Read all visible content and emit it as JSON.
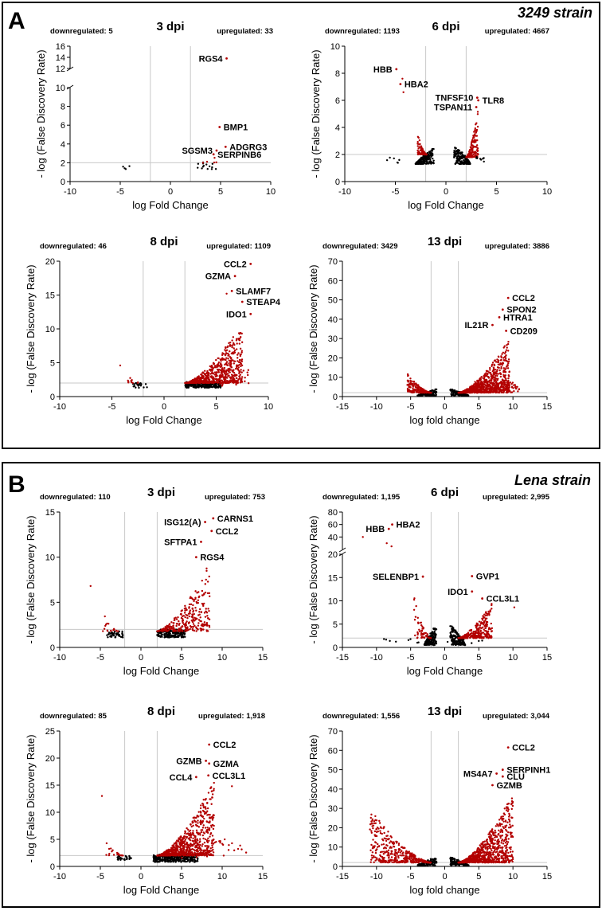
{
  "colors": {
    "significant": "#b30000",
    "nonsignificant": "#000000",
    "threshold": "#c8c8c8"
  },
  "panels": [
    {
      "letter": "A",
      "strain": "3249 strain"
    },
    {
      "letter": "B",
      "strain": "Lena strain"
    }
  ],
  "chart_data": [
    {
      "type": "scatter",
      "panel": "A",
      "title": "3 dpi",
      "xlabel": "log Fold Change",
      "ylabel": "- log (False Discovery Rate)",
      "downregulated_label": "downregulated: 5",
      "upregulated_label": "upregulated: 33",
      "xlim": [
        -10,
        10
      ],
      "xticks": [
        -10,
        -5,
        0,
        5,
        10
      ],
      "ylim": [
        0,
        16
      ],
      "yticks": [
        0,
        2,
        4,
        6,
        8,
        10,
        12,
        14,
        16
      ],
      "y_axis_break": {
        "from": 10,
        "to": 12
      },
      "thresholds": {
        "x": [
          -2,
          2
        ],
        "y": 2
      },
      "labeled_points": [
        {
          "gene": "RGS4",
          "x": 5.6,
          "y": 13.8,
          "label_side": "left"
        },
        {
          "gene": "BMP1",
          "x": 4.9,
          "y": 5.8,
          "label_side": "right"
        },
        {
          "gene": "ADGRG3",
          "x": 5.5,
          "y": 3.7,
          "label_side": "right"
        },
        {
          "gene": "SERPINB6",
          "x": 4.3,
          "y": 2.9,
          "label_side": "right"
        },
        {
          "gene": "SGSM3",
          "x": 4.6,
          "y": 3.3,
          "label_side": "left"
        }
      ],
      "seed": 11,
      "clouds": [
        {
          "n": 4,
          "xmin": -4.8,
          "xmax": -3.8,
          "ymin": 1.3,
          "ymax": 1.7,
          "shape": "flat",
          "color": "nonsignificant"
        },
        {
          "n": 14,
          "xmin": 2.5,
          "xmax": 4.6,
          "ymin": 1.3,
          "ymax": 2.1,
          "shape": "flat",
          "color": "nonsignificant"
        },
        {
          "n": 5,
          "xmin": 3.2,
          "xmax": 4.8,
          "ymin": 2.0,
          "ymax": 2.9,
          "shape": "up",
          "color": "significant"
        }
      ]
    },
    {
      "type": "scatter",
      "panel": "A",
      "title": "6 dpi",
      "xlabel": "log Fold Change",
      "ylabel": "- log (False Discovery Rate)",
      "downregulated_label": "downregulated: 1193",
      "upregulated_label": "upregulated: 4667",
      "xlim": [
        -10,
        10
      ],
      "xticks": [
        -10,
        -5,
        0,
        5,
        10
      ],
      "ylim": [
        0,
        10
      ],
      "yticks": [
        0,
        2,
        4,
        6,
        8,
        10
      ],
      "thresholds": {
        "x": [
          -2,
          2
        ],
        "y": 2
      },
      "labeled_points": [
        {
          "gene": "HBB",
          "x": -4.9,
          "y": 8.3,
          "label_side": "left"
        },
        {
          "gene": "HBA2",
          "x": -4.5,
          "y": 7.2,
          "label_side": "right"
        },
        {
          "gene": "TNFSF10",
          "x": 3.1,
          "y": 6.2,
          "label_side": "left"
        },
        {
          "gene": "TLR8",
          "x": 3.2,
          "y": 6.0,
          "label_side": "right"
        },
        {
          "gene": "TSPAN11",
          "x": 3.0,
          "y": 5.5,
          "label_side": "left"
        }
      ],
      "extra_points": [
        {
          "x": -4.2,
          "y": 6.6
        },
        {
          "x": -4.3,
          "y": 7.6
        }
      ],
      "seed": 23,
      "clouds": [
        {
          "n": 190,
          "xmin": -3.0,
          "xmax": -1.2,
          "ymin": 1.3,
          "ymax": 2.5,
          "shape": "dome_left",
          "color": "nonsignificant"
        },
        {
          "n": 90,
          "xmin": -2.8,
          "xmax": -1.9,
          "ymin": 2.0,
          "ymax": 3.5,
          "shape": "down",
          "color": "significant"
        },
        {
          "n": 6,
          "xmin": -6.0,
          "xmax": -4.3,
          "ymin": 1.3,
          "ymax": 1.9,
          "shape": "flat",
          "color": "nonsignificant"
        },
        {
          "n": 190,
          "xmin": 0.8,
          "xmax": 2.4,
          "ymin": 1.3,
          "ymax": 2.8,
          "shape": "dome_right",
          "color": "nonsignificant"
        },
        {
          "n": 180,
          "xmin": 2.0,
          "xmax": 3.2,
          "ymin": 1.8,
          "ymax": 5.5,
          "shape": "up",
          "color": "significant"
        },
        {
          "n": 8,
          "xmin": 3.0,
          "xmax": 3.9,
          "ymin": 1.3,
          "ymax": 1.9,
          "shape": "flat",
          "color": "nonsignificant"
        }
      ]
    },
    {
      "type": "scatter",
      "panel": "A",
      "title": "8 dpi",
      "xlabel": "log Fold Change",
      "ylabel": "- log (False Discovery Rate)",
      "downregulated_label": "downregulated: 46",
      "upregulated_label": "upregulated: 1109",
      "xlim": [
        -10,
        10
      ],
      "xticks": [
        -10,
        -5,
        0,
        5,
        10
      ],
      "ylim": [
        0,
        20
      ],
      "yticks": [
        0,
        5,
        10,
        15,
        20
      ],
      "thresholds": {
        "x": [
          -2,
          2
        ],
        "y": 2
      },
      "labeled_points": [
        {
          "gene": "CCL2",
          "x": 8.3,
          "y": 19.6,
          "label_side": "left"
        },
        {
          "gene": "GZMA",
          "x": 6.8,
          "y": 17.8,
          "label_side": "left"
        },
        {
          "gene": "SLAMF7",
          "x": 6.5,
          "y": 15.6,
          "label_side": "right"
        },
        {
          "gene": "STEAP4",
          "x": 7.5,
          "y": 14.0,
          "label_side": "right"
        },
        {
          "gene": "IDO1",
          "x": 8.3,
          "y": 12.2,
          "label_side": "left"
        }
      ],
      "extra_points": [
        {
          "x": -4.2,
          "y": 4.6
        },
        {
          "x": 6.0,
          "y": 15.2
        }
      ],
      "seed": 37,
      "clouds": [
        {
          "n": 22,
          "xmin": -3.0,
          "xmax": -1.2,
          "ymin": 1.3,
          "ymax": 2.0,
          "shape": "flat",
          "color": "nonsignificant"
        },
        {
          "n": 10,
          "xmin": -3.6,
          "xmax": -2.2,
          "ymin": 2.0,
          "ymax": 3.2,
          "shape": "down",
          "color": "significant"
        },
        {
          "n": 260,
          "xmin": 2.0,
          "xmax": 5.5,
          "ymin": 1.3,
          "ymax": 2.2,
          "shape": "flat",
          "color": "nonsignificant"
        },
        {
          "n": 650,
          "xmin": 2.0,
          "xmax": 7.5,
          "ymin": 2.0,
          "ymax": 11.0,
          "shape": "up",
          "color": "significant"
        },
        {
          "n": 30,
          "xmin": 5.0,
          "xmax": 8.5,
          "ymin": 1.5,
          "ymax": 4.0,
          "shape": "flat",
          "color": "significant"
        }
      ]
    },
    {
      "type": "scatter",
      "panel": "A",
      "title": "13 dpi",
      "xlabel": "log fold change",
      "ylabel": "- log (False Discovery Rate)",
      "downregulated_label": "downregulated: 3429",
      "upregulated_label": "upregulated: 3886",
      "xlim": [
        -15,
        15
      ],
      "xticks": [
        -15,
        -10,
        -5,
        0,
        5,
        10,
        15
      ],
      "ylim": [
        0,
        70
      ],
      "yticks": [
        0,
        10,
        20,
        30,
        40,
        50,
        60,
        70
      ],
      "thresholds": {
        "x": [
          -2,
          2
        ],
        "y": 2
      },
      "labeled_points": [
        {
          "gene": "CCL2",
          "x": 9.3,
          "y": 51,
          "label_side": "right"
        },
        {
          "gene": "SPON2",
          "x": 8.5,
          "y": 45,
          "label_side": "right"
        },
        {
          "gene": "HTRA1",
          "x": 8.0,
          "y": 41,
          "label_side": "right"
        },
        {
          "gene": "IL21R",
          "x": 7.0,
          "y": 37,
          "label_side": "left"
        },
        {
          "gene": "CD209",
          "x": 9.0,
          "y": 34,
          "label_side": "right"
        }
      ],
      "seed": 53,
      "clouds": [
        {
          "n": 120,
          "xmin": -4.0,
          "xmax": -1.2,
          "ymin": 0.5,
          "ymax": 4.0,
          "shape": "dome_left",
          "color": "nonsignificant"
        },
        {
          "n": 220,
          "xmin": -5.5,
          "xmax": -2.0,
          "ymin": 2.0,
          "ymax": 12.0,
          "shape": "down",
          "color": "significant"
        },
        {
          "n": 120,
          "xmin": 0.8,
          "xmax": 3.5,
          "ymin": 0.5,
          "ymax": 4.0,
          "shape": "dome_right",
          "color": "nonsignificant"
        },
        {
          "n": 800,
          "xmin": 2.0,
          "xmax": 9.5,
          "ymin": 2.0,
          "ymax": 30.0,
          "shape": "up",
          "color": "significant"
        },
        {
          "n": 60,
          "xmin": 4.0,
          "xmax": 11.0,
          "ymin": 2.0,
          "ymax": 8.0,
          "shape": "flat",
          "color": "significant"
        }
      ]
    },
    {
      "type": "scatter",
      "panel": "B",
      "title": "3 dpi",
      "xlabel": "log Fold Change",
      "ylabel": "- log (False Discovery Rate)",
      "downregulated_label": "downregulated: 110",
      "upregulated_label": "upregulated: 753",
      "xlim": [
        -10,
        15
      ],
      "xticks": [
        -10,
        -5,
        0,
        5,
        10,
        15
      ],
      "ylim": [
        0,
        15
      ],
      "yticks": [
        0,
        5,
        10,
        15
      ],
      "thresholds": {
        "x": [
          -2,
          2
        ],
        "y": 2
      },
      "labeled_points": [
        {
          "gene": "CARNS1",
          "x": 8.9,
          "y": 14.3,
          "label_side": "right"
        },
        {
          "gene": "ISG12(A)",
          "x": 7.9,
          "y": 13.9,
          "label_side": "left"
        },
        {
          "gene": "CCL2",
          "x": 8.7,
          "y": 12.9,
          "label_side": "right"
        },
        {
          "gene": "SFTPA1",
          "x": 7.4,
          "y": 11.7,
          "label_side": "left"
        },
        {
          "gene": "RGS4",
          "x": 6.8,
          "y": 10.0,
          "label_side": "right"
        }
      ],
      "extra_points": [
        {
          "x": -6.2,
          "y": 6.8
        }
      ],
      "seed": 71,
      "clouds": [
        {
          "n": 40,
          "xmin": -4.2,
          "xmax": -2.2,
          "ymin": 1.1,
          "ymax": 1.8,
          "shape": "flat",
          "color": "nonsignificant"
        },
        {
          "n": 18,
          "xmin": -4.8,
          "xmax": -2.8,
          "ymin": 1.8,
          "ymax": 4.4,
          "shape": "down",
          "color": "significant"
        },
        {
          "n": 200,
          "xmin": 2.0,
          "xmax": 5.5,
          "ymin": 1.1,
          "ymax": 2.0,
          "shape": "flat",
          "color": "nonsignificant"
        },
        {
          "n": 300,
          "xmin": 2.0,
          "xmax": 8.5,
          "ymin": 1.8,
          "ymax": 9.5,
          "shape": "up",
          "color": "significant"
        }
      ]
    },
    {
      "type": "scatter",
      "panel": "B",
      "title": "6 dpi",
      "xlabel": "log Fold Change",
      "ylabel": "- log (False Discovery Rate)",
      "downregulated_label": "downregulated: 1,195",
      "upregulated_label": "upregulated: 2,995",
      "xlim": [
        -15,
        15
      ],
      "xticks": [
        -15,
        -10,
        -5,
        0,
        5,
        10,
        15
      ],
      "ylim": [
        0,
        80
      ],
      "yticks": [
        0,
        5,
        10,
        15,
        20,
        40,
        60,
        80
      ],
      "y_axis_break": {
        "from": 20,
        "to": 20
      },
      "thresholds": {
        "x": [
          -2,
          2
        ],
        "y": 2
      },
      "labeled_points": [
        {
          "gene": "HBA2",
          "x": -7.7,
          "y": 60,
          "label_side": "right"
        },
        {
          "gene": "HBB",
          "x": -8.2,
          "y": 53,
          "label_side": "left"
        },
        {
          "gene": "SELENBP1",
          "x": -3.2,
          "y": 15.2,
          "label_side": "left"
        },
        {
          "gene": "GVP1",
          "x": 4.0,
          "y": 15.3,
          "label_side": "right"
        },
        {
          "gene": "IDO1",
          "x": 4.0,
          "y": 12.0,
          "label_side": "left"
        },
        {
          "gene": "CCL3L1",
          "x": 5.5,
          "y": 10.5,
          "label_side": "right"
        }
      ],
      "extra_points": [
        {
          "x": -12.0,
          "y": 40
        },
        {
          "x": -8.5,
          "y": 30
        },
        {
          "x": -7.8,
          "y": 25
        },
        {
          "x": 10.2,
          "y": 8.6
        }
      ],
      "seed": 89,
      "clouds": [
        {
          "n": 160,
          "xmin": -3.0,
          "xmax": -1.2,
          "ymin": 0.5,
          "ymax": 5.0,
          "shape": "dome_left",
          "color": "nonsignificant"
        },
        {
          "n": 60,
          "xmin": -4.5,
          "xmax": -2.0,
          "ymin": 2.0,
          "ymax": 11.0,
          "shape": "down",
          "color": "significant"
        },
        {
          "n": 160,
          "xmin": 0.8,
          "xmax": 3.0,
          "ymin": 0.5,
          "ymax": 5.0,
          "shape": "dome_right",
          "color": "nonsignificant"
        },
        {
          "n": 300,
          "xmin": 2.0,
          "xmax": 7.0,
          "ymin": 2.0,
          "ymax": 10.5,
          "shape": "up",
          "color": "significant"
        },
        {
          "n": 14,
          "xmin": -9.0,
          "xmax": 6.0,
          "ymin": 0.8,
          "ymax": 1.8,
          "shape": "flat",
          "color": "nonsignificant"
        }
      ]
    },
    {
      "type": "scatter",
      "panel": "B",
      "title": "8 dpi",
      "xlabel": "log Fold Change",
      "ylabel": "- log (False Discovery Rate)",
      "downregulated_label": "downregulated: 85",
      "upregulated_label": "upregulated: 1,918",
      "xlim": [
        -10,
        15
      ],
      "xticks": [
        -10,
        -5,
        0,
        5,
        10,
        15
      ],
      "ylim": [
        0,
        25
      ],
      "yticks": [
        0,
        5,
        10,
        15,
        20,
        25
      ],
      "thresholds": {
        "x": [
          -2,
          2
        ],
        "y": 2
      },
      "labeled_points": [
        {
          "gene": "CCL2",
          "x": 8.4,
          "y": 22.5,
          "label_side": "right"
        },
        {
          "gene": "GZMB",
          "x": 8.0,
          "y": 19.5,
          "label_side": "left"
        },
        {
          "gene": "GZMA",
          "x": 8.4,
          "y": 19.0,
          "label_side": "right"
        },
        {
          "gene": "CCL4",
          "x": 6.8,
          "y": 16.5,
          "label_side": "left"
        },
        {
          "gene": "CCL3L1",
          "x": 8.3,
          "y": 16.8,
          "label_side": "right"
        }
      ],
      "extra_points": [
        {
          "x": -4.8,
          "y": 13.0
        },
        {
          "x": 11.2,
          "y": 14.8
        }
      ],
      "seed": 101,
      "clouds": [
        {
          "n": 30,
          "xmin": -3.0,
          "xmax": -1.2,
          "ymin": 1.2,
          "ymax": 2.0,
          "shape": "flat",
          "color": "nonsignificant"
        },
        {
          "n": 18,
          "xmin": -4.5,
          "xmax": -2.2,
          "ymin": 2.0,
          "ymax": 5.0,
          "shape": "down",
          "color": "significant"
        },
        {
          "n": 300,
          "xmin": 1.5,
          "xmax": 7.0,
          "ymin": 0.8,
          "ymax": 2.2,
          "shape": "flat",
          "color": "nonsignificant"
        },
        {
          "n": 800,
          "xmin": 2.0,
          "xmax": 9.0,
          "ymin": 2.0,
          "ymax": 16.0,
          "shape": "up",
          "color": "significant"
        },
        {
          "n": 40,
          "xmin": 5.0,
          "xmax": 13.0,
          "ymin": 1.5,
          "ymax": 5.0,
          "shape": "flat",
          "color": "significant"
        }
      ]
    },
    {
      "type": "scatter",
      "panel": "B",
      "title": "13 dpi",
      "xlabel": "log fold change",
      "ylabel": "- log (False Discovery Rate)",
      "downregulated_label": "downregulated: 1,556",
      "upregulated_label": "upregulated: 3,044",
      "xlim": [
        -15,
        15
      ],
      "xticks": [
        -15,
        -10,
        -5,
        0,
        5,
        10,
        15
      ],
      "ylim": [
        0,
        70
      ],
      "yticks": [
        0,
        10,
        20,
        30,
        40,
        50,
        60,
        70
      ],
      "thresholds": {
        "x": [
          -2,
          2
        ],
        "y": 2
      },
      "labeled_points": [
        {
          "gene": "CCL2",
          "x": 9.3,
          "y": 61.5,
          "label_side": "right"
        },
        {
          "gene": "SERPINH1",
          "x": 8.5,
          "y": 50.0,
          "label_side": "right"
        },
        {
          "gene": "MS4A7",
          "x": 7.6,
          "y": 48.0,
          "label_side": "left"
        },
        {
          "gene": "CLU",
          "x": 8.5,
          "y": 46.5,
          "label_side": "right"
        },
        {
          "gene": "GZMB",
          "x": 7.0,
          "y": 42.0,
          "label_side": "right"
        }
      ],
      "seed": 131,
      "clouds": [
        {
          "n": 130,
          "xmin": -4.0,
          "xmax": -1.2,
          "ymin": 0.5,
          "ymax": 5.0,
          "shape": "dome_left",
          "color": "nonsignificant"
        },
        {
          "n": 420,
          "xmin": -11.0,
          "xmax": -2.0,
          "ymin": 2.0,
          "ymax": 30.0,
          "shape": "down",
          "color": "significant"
        },
        {
          "n": 130,
          "xmin": 0.8,
          "xmax": 3.5,
          "ymin": 0.5,
          "ymax": 5.0,
          "shape": "dome_right",
          "color": "nonsignificant"
        },
        {
          "n": 800,
          "xmin": 2.0,
          "xmax": 10.0,
          "ymin": 2.0,
          "ymax": 38.0,
          "shape": "up",
          "color": "significant"
        }
      ]
    }
  ]
}
